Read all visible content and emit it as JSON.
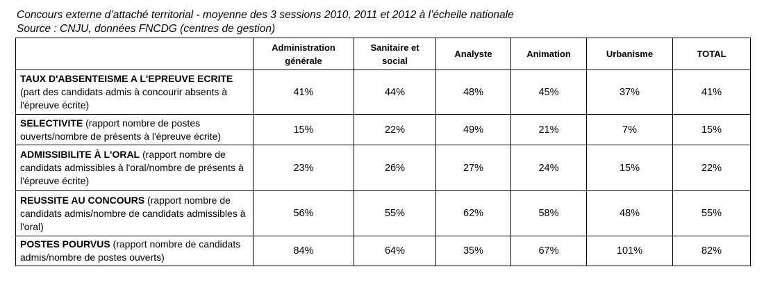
{
  "caption": {
    "line1": "Concours externe d’attaché territorial -  moyenne des 3 sessions 2010, 2011 et 2012 à l’échelle nationale",
    "line2": "Source : CNJU, données FNCDG (centres de gestion)"
  },
  "table": {
    "headers": [
      "Administration générale",
      "Sanitaire et social",
      "Analyste",
      "Animation",
      "Urbanisme",
      "TOTAL"
    ],
    "rows": [
      {
        "title": "TAUX D'ABSENTEISME A L'EPREUVE ECRITE",
        "desc": " (part des candidats admis à concourir absents à l'épreuve écrite)",
        "values": [
          "41%",
          "44%",
          "48%",
          "45%",
          "37%",
          "41%"
        ]
      },
      {
        "title": "SELECTIVITE",
        "desc": " (rapport nombre de postes ouverts/nombre de présents à l'épreuve écrite)",
        "values": [
          "15%",
          "22%",
          "49%",
          "21%",
          "7%",
          "15%"
        ]
      },
      {
        "title": "ADMISSIBILITE À L'ORAL",
        "desc": " (rapport nombre de candidats admissibles à l'oral/nombre de présents à l'épreuve écrite)",
        "values": [
          "23%",
          "26%",
          "27%",
          "24%",
          "15%",
          "22%"
        ]
      },
      {
        "title": "REUSSITE AU CONCOURS",
        "desc": " (rapport nombre de candidats admis/nombre de candidats admissibles à l'oral)",
        "values": [
          "56%",
          "55%",
          "62%",
          "58%",
          "48%",
          "55%"
        ]
      },
      {
        "title": "POSTES POURVUS",
        "desc": " (rapport nombre de candidats admis/nombre de postes ouverts)",
        "values": [
          "84%",
          "64%",
          "35%",
          "67%",
          "101%",
          "82%"
        ]
      }
    ]
  }
}
